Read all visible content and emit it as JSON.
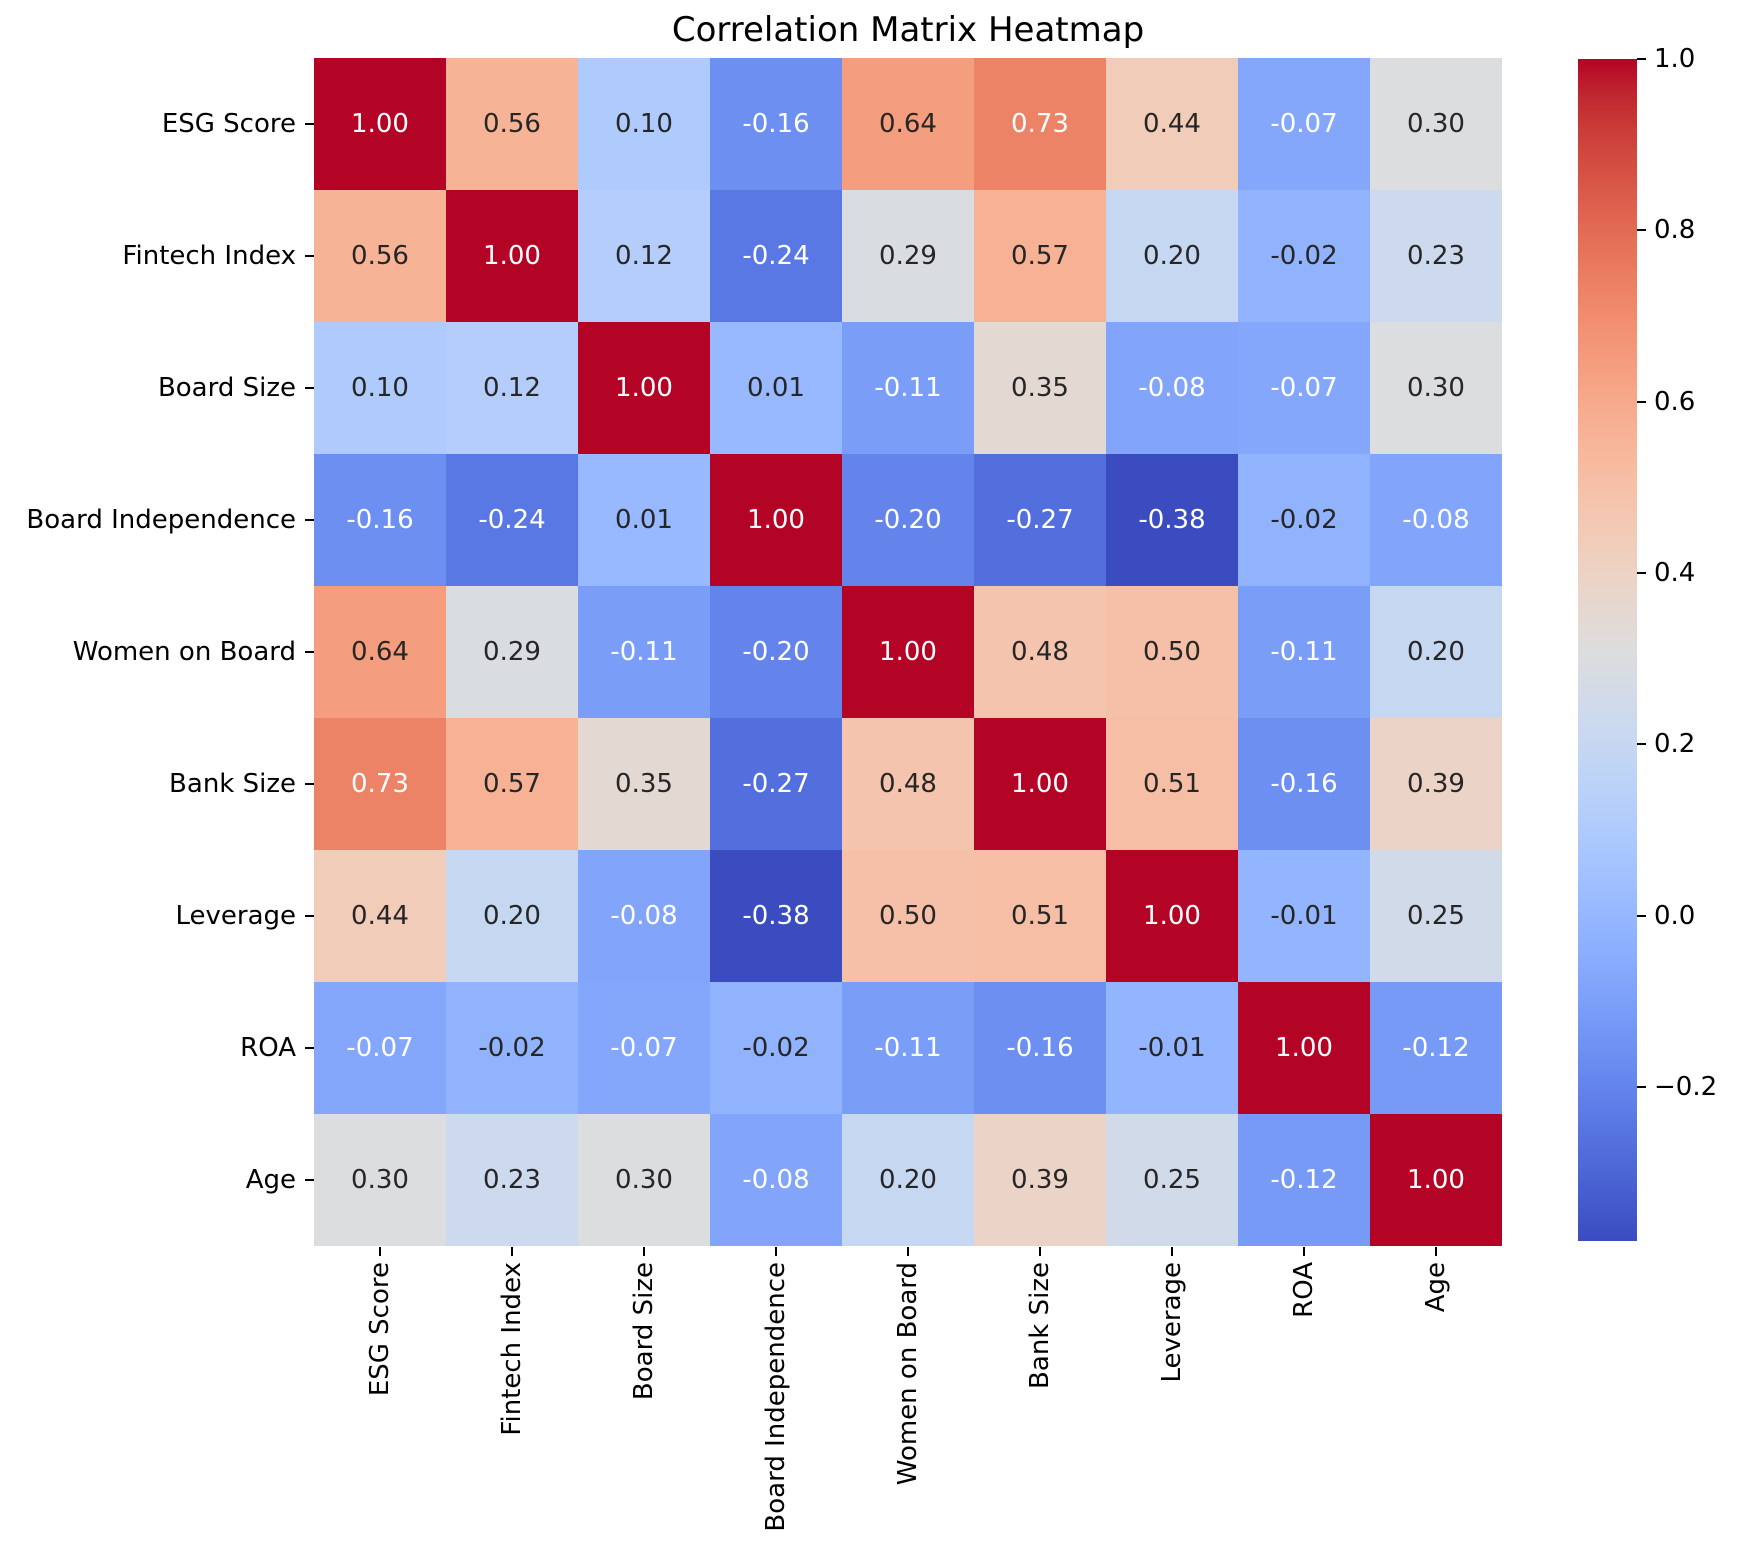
{
  "chart_data": {
    "type": "heatmap",
    "title": "Correlation Matrix Heatmap",
    "labels": [
      "ESG Score",
      "Fintech Index",
      "Board Size",
      "Board Independence",
      "Women on Board",
      "Bank Size",
      "Leverage",
      "ROA",
      "Age"
    ],
    "matrix": [
      [
        1.0,
        0.56,
        0.1,
        -0.16,
        0.64,
        0.73,
        0.44,
        -0.07,
        0.3
      ],
      [
        0.56,
        1.0,
        0.12,
        -0.24,
        0.29,
        0.57,
        0.2,
        -0.02,
        0.23
      ],
      [
        0.1,
        0.12,
        1.0,
        0.01,
        -0.11,
        0.35,
        -0.08,
        -0.07,
        0.3
      ],
      [
        -0.16,
        -0.24,
        0.01,
        1.0,
        -0.2,
        -0.27,
        -0.38,
        -0.02,
        -0.08
      ],
      [
        0.64,
        0.29,
        -0.11,
        -0.2,
        1.0,
        0.48,
        0.5,
        -0.11,
        0.2
      ],
      [
        0.73,
        0.57,
        0.35,
        -0.27,
        0.48,
        1.0,
        0.51,
        -0.16,
        0.39
      ],
      [
        0.44,
        0.2,
        -0.08,
        -0.38,
        0.5,
        0.51,
        1.0,
        -0.01,
        0.25
      ],
      [
        -0.07,
        -0.02,
        -0.07,
        -0.02,
        -0.11,
        -0.16,
        -0.01,
        1.0,
        -0.12
      ],
      [
        0.3,
        0.23,
        0.3,
        -0.08,
        0.2,
        0.39,
        0.25,
        -0.12,
        1.0
      ]
    ],
    "value_format": ".2f",
    "colormap": "coolwarm",
    "vmin": -0.38,
    "vmax": 1.0,
    "colorbar": {
      "position": "right",
      "tick_values": [
        1.0,
        0.8,
        0.6,
        0.4,
        0.2,
        0.0,
        -0.2
      ],
      "tick_labels": [
        "1.0",
        "0.8",
        "0.6",
        "0.4",
        "0.2",
        "0.0",
        "−0.2"
      ]
    },
    "annotation_colors": {
      "on_dark": "#ffffff",
      "on_light": "#262626"
    },
    "background": "#ffffff"
  }
}
